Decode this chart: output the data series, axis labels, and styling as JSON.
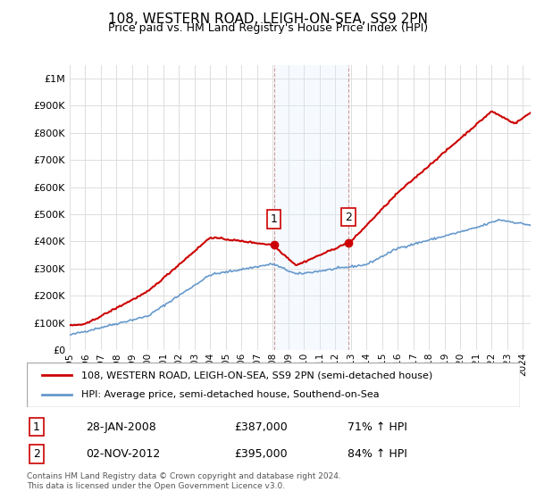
{
  "title": "108, WESTERN ROAD, LEIGH-ON-SEA, SS9 2PN",
  "subtitle": "Price paid vs. HM Land Registry's House Price Index (HPI)",
  "ylabel_ticks": [
    "£0",
    "£100K",
    "£200K",
    "£300K",
    "£400K",
    "£500K",
    "£600K",
    "£700K",
    "£800K",
    "£900K",
    "£1M"
  ],
  "ytick_values": [
    0,
    100000,
    200000,
    300000,
    400000,
    500000,
    600000,
    700000,
    800000,
    900000,
    1000000
  ],
  "ylim": [
    0,
    1050000
  ],
  "xlim_start": 1995.0,
  "xlim_end": 2024.5,
  "xtick_years": [
    1995,
    1996,
    1997,
    1998,
    1999,
    2000,
    2001,
    2002,
    2003,
    2004,
    2005,
    2006,
    2007,
    2008,
    2009,
    2010,
    2011,
    2012,
    2013,
    2014,
    2015,
    2016,
    2017,
    2018,
    2019,
    2020,
    2021,
    2022,
    2023,
    2024
  ],
  "legend_line1": "108, WESTERN ROAD, LEIGH-ON-SEA, SS9 2PN (semi-detached house)",
  "legend_line2": "HPI: Average price, semi-detached house, Southend-on-Sea",
  "line1_color": "#cc0000",
  "line2_color": "#6699cc",
  "annotation1": {
    "label": "1",
    "date_x": 2008.08,
    "price": 387000,
    "text_date": "28-JAN-2008",
    "text_price": "£387,000",
    "text_hpi": "71% ↑ HPI"
  },
  "annotation2": {
    "label": "2",
    "date_x": 2012.84,
    "price": 395000,
    "text_date": "02-NOV-2012",
    "text_price": "£395,000",
    "text_hpi": "84% ↑ HPI"
  },
  "footer": "Contains HM Land Registry data © Crown copyright and database right 2024.\nThis data is licensed under the Open Government Licence v3.0.",
  "bg_color": "#ffffff",
  "grid_color": "#dddddd",
  "shading_color": "#ddeeff"
}
